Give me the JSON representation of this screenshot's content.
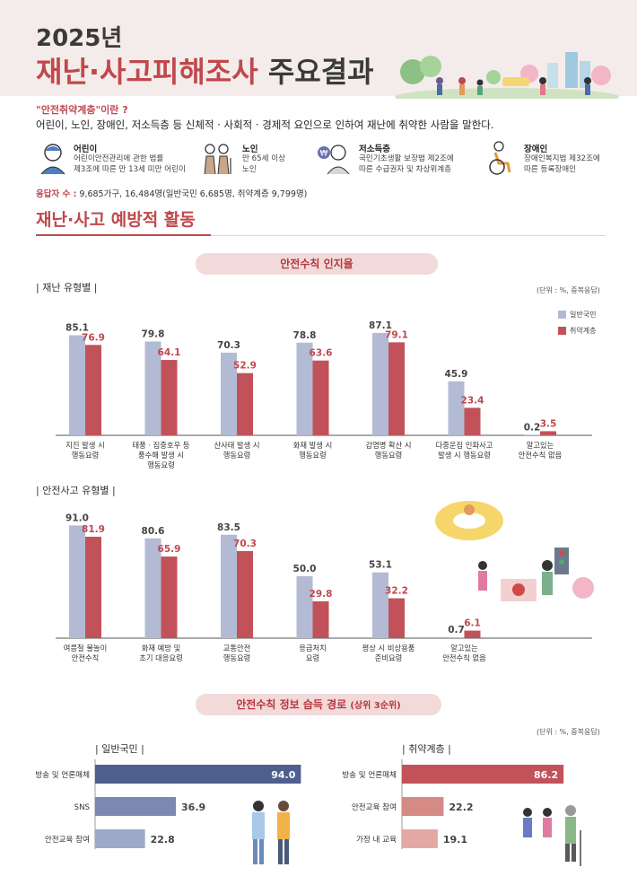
{
  "header": {
    "year": "2025년",
    "title_red": "재난·사고피해조사",
    "title_dark": "주요결과"
  },
  "definition": {
    "question": "\"안전취약계층\"이란 ?",
    "text": "어린이, 노인, 장애인, 저소득층 등 신체적 · 사회적 · 경제적 요인으로 인하여 재난에 취약한 사람을 말한다."
  },
  "groups": [
    {
      "title": "어린이",
      "desc1": "어린이안전관리에 관한 법률",
      "desc2": "제3조에 따른 만 13세 미만 어린이",
      "icon": "child-icon"
    },
    {
      "title": "노인",
      "desc1": "만 65세 이상",
      "desc2": "노인",
      "icon": "elderly-icon"
    },
    {
      "title": "저소득층",
      "desc1": "국민기초생활 보장법 제2조에",
      "desc2": "따른 수급권자 및 차상위계층",
      "icon": "low-income-icon"
    },
    {
      "title": "장애인",
      "desc1": "장애인복지법 제32조에",
      "desc2": "따른 등록장애인",
      "icon": "wheelchair-icon"
    }
  ],
  "respondents": {
    "label": "응답자 수 :",
    "value": "9,685가구, 16,484명(일반국민 6,685명, 취약계층 9,799명)"
  },
  "section_title": "재난·사고 예방적 활동",
  "pill1": "안전수칙 인지율",
  "pill2_main": "안전수칙 정보 습득 경로",
  "pill2_sub": "(상위 3순위)",
  "unit_label": "(단위 : %, 중복응답)",
  "colors": {
    "general": "#b3bbd4",
    "vulnerable": "#c2525a",
    "general_dark": "#4e5e8e",
    "vulnerable_dark": "#c2525a",
    "accent": "#c0484c"
  },
  "chart_data": [
    {
      "type": "bar",
      "title": "| 재난 유형별 |",
      "categories": [
        [
          "지진 발생 시",
          "행동요령"
        ],
        [
          "태풍 · 집중호우 등",
          "풍수해 발생 시",
          "행동요령"
        ],
        [
          "산사태 발생 시",
          "행동요령"
        ],
        [
          "화재 발생 시",
          "행동요령"
        ],
        [
          "감염병 확산 시",
          "행동요령"
        ],
        [
          "다중운집 인파사고",
          "발생 시 행동요령"
        ],
        [
          "알고있는",
          "안전수칙 없음"
        ]
      ],
      "series": [
        {
          "name": "일반국민",
          "values": [
            85.1,
            79.8,
            70.3,
            78.8,
            87.1,
            45.9,
            0.2
          ]
        },
        {
          "name": "취약계층",
          "values": [
            76.9,
            64.1,
            52.9,
            63.6,
            79.1,
            23.4,
            3.5
          ]
        }
      ],
      "ylim": [
        0,
        100
      ],
      "legend": "top-right",
      "grid": false
    },
    {
      "type": "bar",
      "title": "| 안전사고 유형별 |",
      "categories": [
        [
          "여름철 물놀이",
          "안전수칙"
        ],
        [
          "화재 예방 및",
          "초기 대응요령"
        ],
        [
          "교통안전",
          "행동요령"
        ],
        [
          "응급처치",
          "요령"
        ],
        [
          "평상 시 비상용품",
          "준비요령"
        ],
        [
          "알고있는",
          "안전수칙 없음"
        ]
      ],
      "series": [
        {
          "name": "일반국민",
          "values": [
            91.0,
            80.6,
            83.5,
            50.0,
            53.1,
            0.7
          ]
        },
        {
          "name": "취약계층",
          "values": [
            81.9,
            65.9,
            70.3,
            29.8,
            32.2,
            6.1
          ]
        }
      ],
      "ylim": [
        0,
        100
      ],
      "grid": false
    },
    {
      "type": "bar",
      "orientation": "horizontal",
      "title": "| 일반국민 |",
      "categories": [
        "방송 및 언론매체",
        "SNS",
        "안전교육 참여"
      ],
      "values": [
        94.0,
        36.9,
        22.8
      ],
      "xlim": [
        0,
        100
      ]
    },
    {
      "type": "bar",
      "orientation": "horizontal",
      "title": "| 취약계층 |",
      "categories": [
        "방송 및 언론매체",
        "안전교육 참여",
        "가정 내 교육"
      ],
      "values": [
        86.2,
        22.2,
        19.1
      ],
      "xlim": [
        0,
        100
      ]
    }
  ]
}
